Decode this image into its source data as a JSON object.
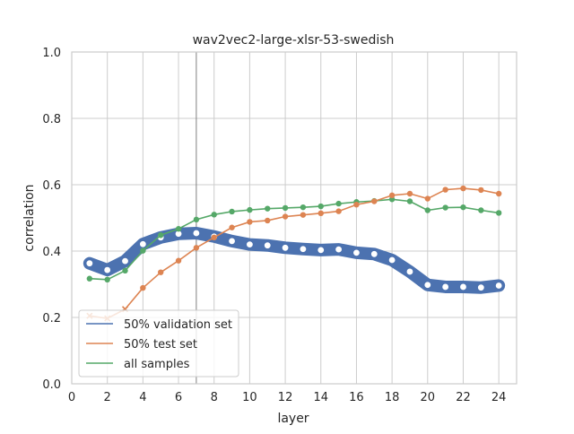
{
  "chart_data": {
    "type": "line",
    "title": "wav2vec2-large-xlsr-53-swedish",
    "xlabel": "layer",
    "ylabel": "correlation",
    "xlim": [
      0,
      25
    ],
    "ylim": [
      0.0,
      1.0
    ],
    "xticks": [
      "0",
      "2",
      "4",
      "6",
      "8",
      "10",
      "12",
      "14",
      "16",
      "18",
      "20",
      "22",
      "24"
    ],
    "yticks": [
      "0.0",
      "0.2",
      "0.4",
      "0.6",
      "0.8",
      "1.0"
    ],
    "grid": true,
    "legend_position": "lower-left",
    "vertical_line_x": 7,
    "x": [
      1,
      2,
      3,
      4,
      5,
      6,
      7,
      8,
      9,
      10,
      11,
      12,
      13,
      14,
      15,
      16,
      17,
      18,
      19,
      20,
      21,
      22,
      23,
      24
    ],
    "series": [
      {
        "name": "50% validation set",
        "color": "#4c72b0",
        "values": [
          0.363,
          0.343,
          0.37,
          0.421,
          0.441,
          0.452,
          0.454,
          0.444,
          0.43,
          0.42,
          0.417,
          0.41,
          0.406,
          0.403,
          0.405,
          0.395,
          0.391,
          0.373,
          0.338,
          0.298,
          0.292,
          0.292,
          0.29,
          0.296
        ]
      },
      {
        "name": "50% test set",
        "color": "#dd8452",
        "values": [
          0.205,
          0.197,
          0.225,
          0.289,
          0.336,
          0.371,
          0.41,
          0.441,
          0.471,
          0.488,
          0.492,
          0.504,
          0.509,
          0.514,
          0.52,
          0.54,
          0.55,
          0.568,
          0.573,
          0.558,
          0.585,
          0.589,
          0.584,
          0.573
        ]
      },
      {
        "name": "all samples",
        "color": "#55a868",
        "values": [
          0.317,
          0.314,
          0.341,
          0.401,
          0.448,
          0.467,
          0.495,
          0.51,
          0.519,
          0.524,
          0.528,
          0.53,
          0.532,
          0.535,
          0.543,
          0.548,
          0.551,
          0.556,
          0.55,
          0.523,
          0.531,
          0.532,
          0.523,
          0.515
        ]
      }
    ]
  }
}
